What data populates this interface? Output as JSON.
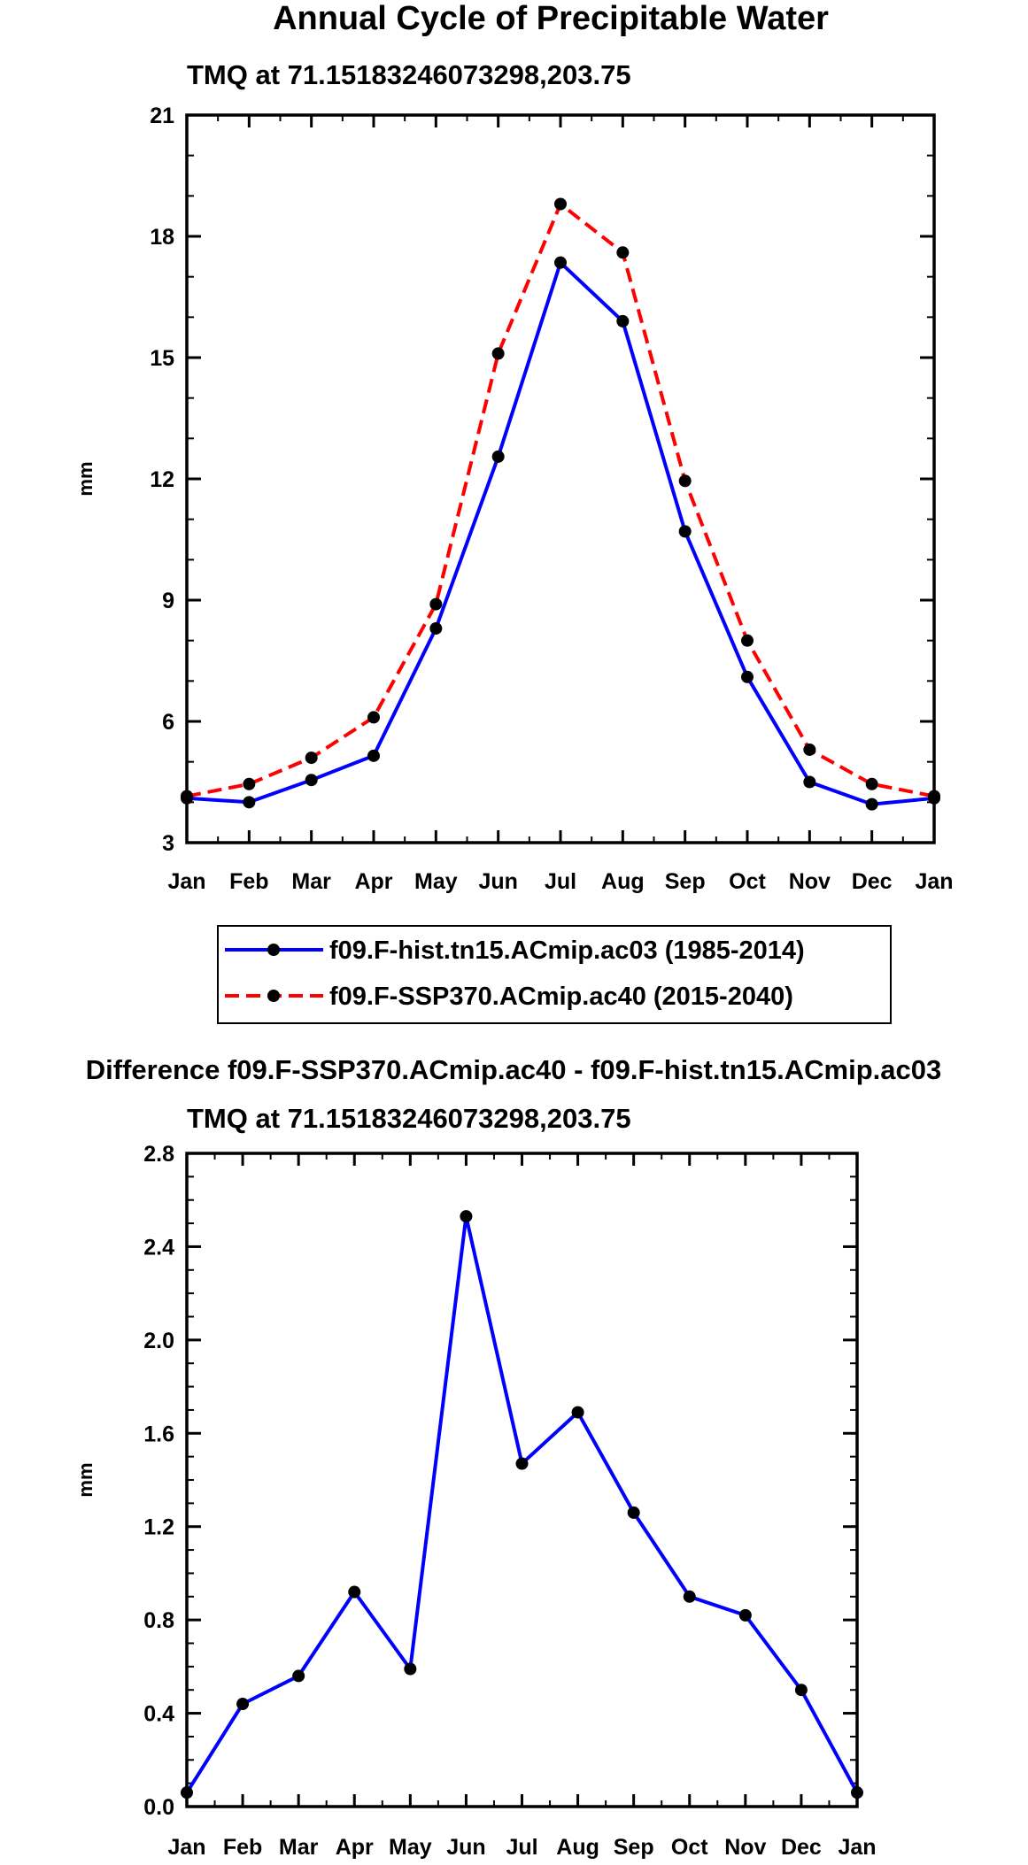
{
  "figure_title": "Annual Cycle of Precipitable Water",
  "chart_data": [
    {
      "type": "line",
      "title": "TMQ at 71.15183246073298,203.75",
      "xlabel": "",
      "ylabel": "mm",
      "categories": [
        "Jan",
        "Feb",
        "Mar",
        "Apr",
        "May",
        "Jun",
        "Jul",
        "Aug",
        "Sep",
        "Oct",
        "Nov",
        "Dec",
        "Jan"
      ],
      "ylim": [
        3,
        21
      ],
      "yticks": [
        3,
        6,
        9,
        12,
        15,
        18,
        21
      ],
      "ytick_labels": [
        "3",
        "6",
        "9",
        "12",
        "15",
        "18",
        "21"
      ],
      "series": [
        {
          "name": "f09.F-hist.tn15.ACmip.ac03 (1985-2014)",
          "color": "#0000ff",
          "dash": "solid",
          "values": [
            4.1,
            4.0,
            4.55,
            5.15,
            8.3,
            12.55,
            17.35,
            15.9,
            10.7,
            7.1,
            4.5,
            3.95,
            4.1
          ]
        },
        {
          "name": "f09.F-SSP370.ACmip.ac40 (2015-2040)",
          "color": "#ff0000",
          "dash": "dashed",
          "values": [
            4.15,
            4.45,
            5.1,
            6.1,
            8.9,
            15.1,
            18.8,
            17.6,
            11.95,
            8.0,
            5.3,
            4.45,
            4.15
          ]
        }
      ]
    },
    {
      "type": "line",
      "heading": "Difference f09.F-SSP370.ACmip.ac40 - f09.F-hist.tn15.ACmip.ac03",
      "title": "TMQ at 71.15183246073298,203.75",
      "xlabel": "",
      "ylabel": "mm",
      "categories": [
        "Jan",
        "Feb",
        "Mar",
        "Apr",
        "May",
        "Jun",
        "Jul",
        "Aug",
        "Sep",
        "Oct",
        "Nov",
        "Dec",
        "Jan"
      ],
      "ylim": [
        0.0,
        2.8
      ],
      "yticks": [
        0.0,
        0.4,
        0.8,
        1.2,
        1.6,
        2.0,
        2.4,
        2.8
      ],
      "ytick_labels": [
        "0.0",
        "0.4",
        "0.8",
        "1.2",
        "1.6",
        "2.0",
        "2.4",
        "2.8"
      ],
      "series": [
        {
          "name": "difference",
          "color": "#0000ff",
          "dash": "solid",
          "values": [
            0.06,
            0.44,
            0.56,
            0.92,
            0.59,
            2.53,
            1.47,
            1.69,
            1.26,
            0.9,
            0.82,
            0.5,
            0.06
          ]
        }
      ]
    }
  ]
}
